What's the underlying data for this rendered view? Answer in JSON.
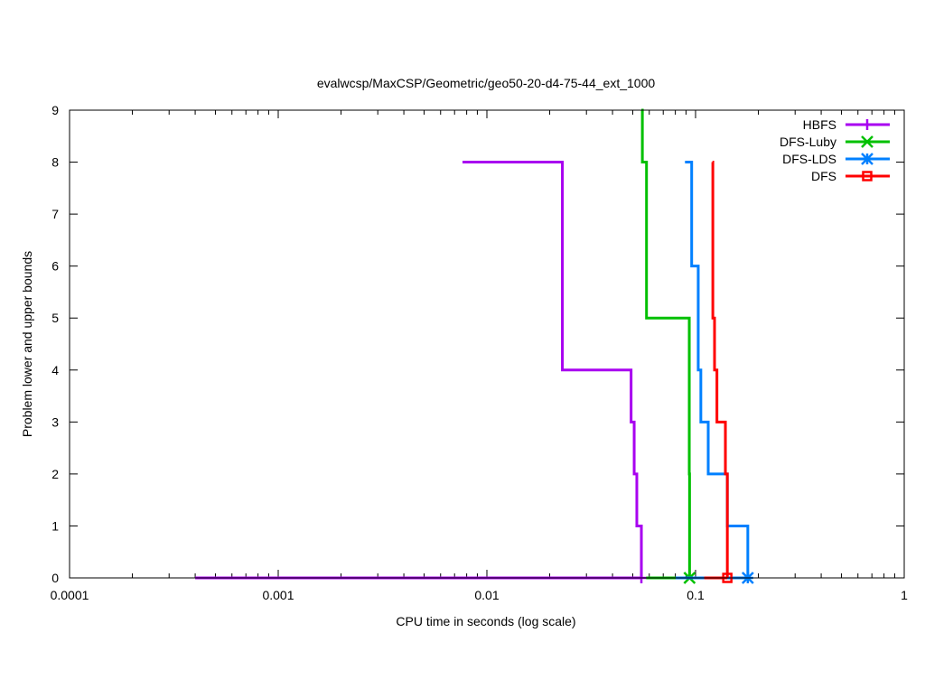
{
  "chart_data": {
    "type": "line",
    "title": "evalwcsp/MaxCSP/Geometric/geo50-20-d4-75-44_ext_1000",
    "xlabel": "CPU time in seconds (log scale)",
    "ylabel": "Problem lower and upper bounds",
    "xscale": "log",
    "xlim": [
      0.0001,
      1
    ],
    "ylim": [
      0,
      9
    ],
    "xticks": [
      {
        "value": 0.0001,
        "label": "0.0001"
      },
      {
        "value": 0.001,
        "label": "0.001"
      },
      {
        "value": 0.01,
        "label": "0.01"
      },
      {
        "value": 0.1,
        "label": "0.1"
      },
      {
        "value": 1,
        "label": "1"
      }
    ],
    "yticks": [
      {
        "value": 0,
        "label": "0"
      },
      {
        "value": 1,
        "label": "1"
      },
      {
        "value": 2,
        "label": "2"
      },
      {
        "value": 3,
        "label": "3"
      },
      {
        "value": 4,
        "label": "4"
      },
      {
        "value": 5,
        "label": "5"
      },
      {
        "value": 6,
        "label": "6"
      },
      {
        "value": 7,
        "label": "7"
      },
      {
        "value": 8,
        "label": "8"
      },
      {
        "value": 9,
        "label": "9"
      }
    ],
    "legend_position": "top-right",
    "series": [
      {
        "name": "HBFS",
        "color": "#a800f0",
        "marker": "plus",
        "upper": [
          [
            0.00764,
            8
          ],
          [
            0.023,
            4
          ],
          [
            0.0491,
            3
          ],
          [
            0.0508,
            2
          ],
          [
            0.0523,
            1
          ],
          [
            0.055,
            0
          ]
        ],
        "lower": [
          [
            0.0004,
            0
          ],
          [
            0.055,
            0
          ]
        ]
      },
      {
        "name": "DFS-Luby",
        "color": "#00c000",
        "marker": "cross",
        "upper": [
          [
            0.055,
            9
          ],
          [
            0.0556,
            8
          ],
          [
            0.0582,
            7
          ],
          [
            0.0582,
            5
          ],
          [
            0.0933,
            2
          ],
          [
            0.0936,
            0
          ]
        ],
        "lower": [
          [
            0.058,
            0
          ],
          [
            0.0936,
            0
          ]
        ]
      },
      {
        "name": "DFS-LDS",
        "color": "#0080ff",
        "marker": "star",
        "upper": [
          [
            0.089,
            8
          ],
          [
            0.0958,
            6
          ],
          [
            0.103,
            4
          ],
          [
            0.106,
            3
          ],
          [
            0.115,
            2
          ],
          [
            0.142,
            1
          ],
          [
            0.178,
            0
          ]
        ],
        "lower": [
          [
            0.0803,
            0
          ],
          [
            0.178,
            0
          ]
        ]
      },
      {
        "name": "DFS",
        "color": "#ff0000",
        "marker": "square",
        "upper": [
          [
            0.1205,
            8
          ],
          [
            0.121,
            5
          ],
          [
            0.1233,
            4
          ],
          [
            0.1266,
            3
          ],
          [
            0.139,
            2
          ],
          [
            0.142,
            1
          ],
          [
            0.142,
            0
          ]
        ],
        "lower": [
          [
            0.11,
            0
          ],
          [
            0.142,
            0
          ]
        ]
      }
    ]
  }
}
